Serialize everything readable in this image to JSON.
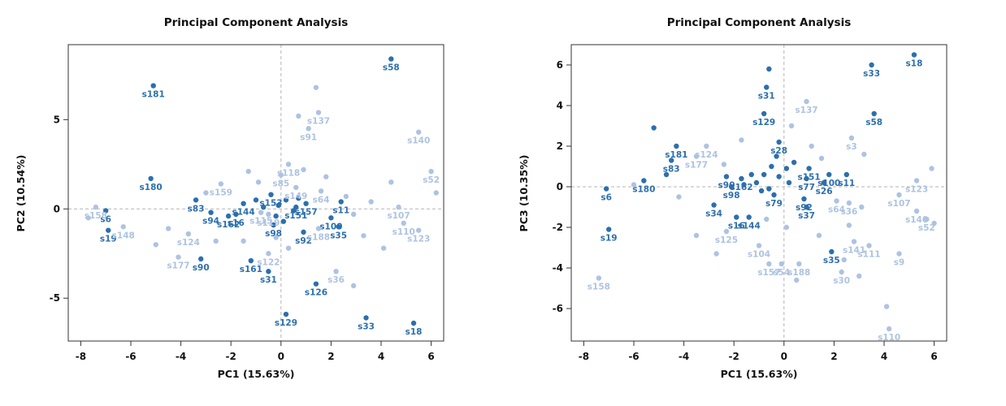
{
  "page": {
    "background": "#ffffff"
  },
  "colors": {
    "dark": "#2c6fad",
    "light": "#aec3e1"
  },
  "chart_data": [
    {
      "type": "scatter",
      "title": "Principal Component Analysis",
      "xlabel": "PC1 (15.63%)",
      "ylabel": "PC2 (10.54%)",
      "xlim": [
        -8.5,
        6.5
      ],
      "ylim": [
        -7.4,
        9.2
      ],
      "xticks": [
        -8,
        -6,
        -4,
        -2,
        0,
        2,
        4,
        6
      ],
      "yticks": [
        -5,
        0,
        5
      ],
      "grid": "zero-lines-dashed",
      "legend": "none",
      "points": [
        {
          "n": "s58",
          "x": 4.4,
          "y": 8.4,
          "c": "d"
        },
        {
          "n": "s181",
          "x": -5.1,
          "y": 6.9,
          "c": "d"
        },
        {
          "n": "s180",
          "x": -5.2,
          "y": 1.7,
          "c": "d"
        },
        {
          "n": "s83",
          "x": -3.4,
          "y": 0.5,
          "c": "d"
        },
        {
          "n": "s94",
          "x": -2.8,
          "y": -0.2,
          "c": "d"
        },
        {
          "n": "s6",
          "x": -7.0,
          "y": -0.1,
          "c": "d"
        },
        {
          "n": "s19",
          "x": -6.9,
          "y": -1.2,
          "c": "d"
        },
        {
          "n": "s90",
          "x": -3.2,
          "y": -2.8,
          "c": "d"
        },
        {
          "n": "s161",
          "x": -1.2,
          "y": -2.9,
          "c": "d"
        },
        {
          "n": "s31",
          "x": -0.5,
          "y": -3.5,
          "c": "d"
        },
        {
          "n": "s126",
          "x": 1.4,
          "y": -4.2,
          "c": "d"
        },
        {
          "n": "s129",
          "x": 0.2,
          "y": -5.9,
          "c": "d"
        },
        {
          "n": "s33",
          "x": 3.4,
          "y": -6.1,
          "c": "d"
        },
        {
          "n": "s18",
          "x": 5.3,
          "y": -6.4,
          "c": "d"
        },
        {
          "n": "s92",
          "x": 0.9,
          "y": -1.3,
          "c": "d"
        },
        {
          "n": "s35",
          "x": 2.3,
          "y": -1.0,
          "c": "d"
        },
        {
          "n": "s100",
          "x": 2.0,
          "y": -0.5,
          "c": "d"
        },
        {
          "n": "s11",
          "x": 2.4,
          "y": 0.4,
          "c": "d"
        },
        {
          "n": "s144",
          "x": -1.5,
          "y": 0.3,
          "c": "d"
        },
        {
          "n": "s162",
          "x": -2.1,
          "y": -0.4,
          "c": "d"
        },
        {
          "n": "s16",
          "x": -1.8,
          "y": -0.3,
          "c": "d"
        },
        {
          "n": "s153",
          "x": -0.4,
          "y": 0.8,
          "c": "d"
        },
        {
          "n": "s157",
          "x": 1.0,
          "y": 0.3,
          "c": "d"
        },
        {
          "n": "s151",
          "x": 0.6,
          "y": 0.1,
          "c": "d"
        },
        {
          "n": "s98",
          "x": -0.3,
          "y": -0.9,
          "c": "d"
        },
        {
          "x": -0.1,
          "y": 0.2,
          "c": "d"
        },
        {
          "x": 0.2,
          "y": 0.5,
          "c": "d"
        },
        {
          "x": -0.7,
          "y": 0.1,
          "c": "d"
        },
        {
          "x": 0.5,
          "y": -0.1,
          "c": "d"
        },
        {
          "x": -0.2,
          "y": -0.4,
          "c": "d"
        },
        {
          "x": 0.7,
          "y": 0.6,
          "c": "d"
        },
        {
          "x": -1.0,
          "y": 0.5,
          "c": "d"
        },
        {
          "x": 0.1,
          "y": -0.7,
          "c": "d"
        },
        {
          "n": "s137",
          "x": 1.5,
          "y": 5.4,
          "c": "l"
        },
        {
          "n": "s91",
          "x": 1.1,
          "y": 4.5,
          "c": "l"
        },
        {
          "n": "s140",
          "x": 5.5,
          "y": 4.3,
          "c": "l"
        },
        {
          "n": "s52",
          "x": 6.0,
          "y": 2.1,
          "c": "l"
        },
        {
          "n": "s118",
          "x": 0.3,
          "y": 2.5,
          "c": "l"
        },
        {
          "n": "s85",
          "x": 0.0,
          "y": 1.9,
          "c": "l"
        },
        {
          "n": "s159",
          "x": -2.4,
          "y": 1.4,
          "c": "l"
        },
        {
          "n": "s149",
          "x": 0.6,
          "y": 1.2,
          "c": "l"
        },
        {
          "n": "s64",
          "x": 1.6,
          "y": 1.0,
          "c": "l"
        },
        {
          "n": "s107",
          "x": 4.7,
          "y": 0.1,
          "c": "l"
        },
        {
          "n": "s110",
          "x": 4.9,
          "y": -0.8,
          "c": "l"
        },
        {
          "n": "s123",
          "x": 5.5,
          "y": -1.2,
          "c": "l"
        },
        {
          "n": "s148",
          "x": -6.3,
          "y": -1.0,
          "c": "l"
        },
        {
          "n": "s158",
          "x": -7.4,
          "y": 0.1,
          "c": "l"
        },
        {
          "n": "s124",
          "x": -3.7,
          "y": -1.4,
          "c": "l"
        },
        {
          "n": "s177",
          "x": -4.1,
          "y": -2.7,
          "c": "l"
        },
        {
          "n": "s122",
          "x": -0.5,
          "y": -2.5,
          "c": "l"
        },
        {
          "n": "s36",
          "x": 2.2,
          "y": -3.5,
          "c": "l"
        },
        {
          "n": "s188",
          "x": 1.5,
          "y": -1.1,
          "c": "l"
        },
        {
          "n": "s115",
          "x": -0.8,
          "y": -0.2,
          "c": "l"
        },
        {
          "n": "s119",
          "x": -0.5,
          "y": -0.3,
          "c": "l"
        },
        {
          "x": -7.7,
          "y": -0.5,
          "c": "l"
        },
        {
          "x": -5.0,
          "y": -2.0,
          "c": "l"
        },
        {
          "x": -4.5,
          "y": -1.1,
          "c": "l"
        },
        {
          "x": -3.0,
          "y": 0.9,
          "c": "l"
        },
        {
          "x": -2.6,
          "y": -1.8,
          "c": "l"
        },
        {
          "x": -1.5,
          "y": -1.8,
          "c": "l"
        },
        {
          "x": -0.9,
          "y": 1.5,
          "c": "l"
        },
        {
          "x": 0.9,
          "y": 2.2,
          "c": "l"
        },
        {
          "x": 1.4,
          "y": 6.8,
          "c": "l"
        },
        {
          "x": 0.7,
          "y": 5.2,
          "c": "l"
        },
        {
          "x": 2.6,
          "y": 0.7,
          "c": "l"
        },
        {
          "x": 2.9,
          "y": -0.3,
          "c": "l"
        },
        {
          "x": 3.3,
          "y": -1.5,
          "c": "l"
        },
        {
          "x": 3.6,
          "y": 0.4,
          "c": "l"
        },
        {
          "x": 4.1,
          "y": -2.2,
          "c": "l"
        },
        {
          "x": 4.4,
          "y": 1.5,
          "c": "l"
        },
        {
          "x": 6.2,
          "y": 0.9,
          "c": "l"
        },
        {
          "x": 2.9,
          "y": -4.3,
          "c": "l"
        },
        {
          "x": 0.3,
          "y": -2.2,
          "c": "l"
        },
        {
          "x": -0.2,
          "y": -1.6,
          "c": "l"
        },
        {
          "x": 1.8,
          "y": 1.8,
          "c": "l"
        },
        {
          "x": -1.3,
          "y": 2.1,
          "c": "l"
        }
      ]
    },
    {
      "type": "scatter",
      "title": "Principal Component Analysis",
      "xlabel": "PC1 (15.63%)",
      "ylabel": "PC3 (10.35%)",
      "xlim": [
        -8.5,
        6.5
      ],
      "ylim": [
        -7.6,
        7.0
      ],
      "xticks": [
        -8,
        -6,
        -4,
        -2,
        0,
        2,
        4,
        6
      ],
      "yticks": [
        -6,
        -4,
        -2,
        0,
        2,
        4,
        6
      ],
      "grid": "zero-lines-dashed",
      "legend": "none",
      "points": [
        {
          "n": "s18",
          "x": 5.2,
          "y": 6.5,
          "c": "d"
        },
        {
          "n": "s33",
          "x": 3.5,
          "y": 6.0,
          "c": "d"
        },
        {
          "n": "s31",
          "x": -0.7,
          "y": 4.9,
          "c": "d"
        },
        {
          "n": "s129",
          "x": -0.8,
          "y": 3.6,
          "c": "d"
        },
        {
          "n": "s58",
          "x": 3.6,
          "y": 3.6,
          "c": "d"
        },
        {
          "n": "s181",
          "x": -4.3,
          "y": 2.0,
          "c": "d"
        },
        {
          "n": "s83",
          "x": -4.5,
          "y": 1.3,
          "c": "d"
        },
        {
          "n": "s28",
          "x": -0.2,
          "y": 2.2,
          "c": "d"
        },
        {
          "n": "s151",
          "x": 1.0,
          "y": 0.9,
          "c": "d"
        },
        {
          "n": "s100",
          "x": 1.8,
          "y": 0.6,
          "c": "d"
        },
        {
          "n": "s11",
          "x": 2.5,
          "y": 0.6,
          "c": "d"
        },
        {
          "n": "s26",
          "x": 1.6,
          "y": 0.2,
          "c": "d"
        },
        {
          "n": "s77",
          "x": 0.9,
          "y": 0.4,
          "c": "d"
        },
        {
          "n": "s180",
          "x": -5.6,
          "y": 0.3,
          "c": "d"
        },
        {
          "n": "s6",
          "x": -7.1,
          "y": -0.1,
          "c": "d"
        },
        {
          "n": "s19",
          "x": -7.0,
          "y": -2.1,
          "c": "d"
        },
        {
          "n": "s90",
          "x": -2.3,
          "y": 0.5,
          "c": "d"
        },
        {
          "n": "s98",
          "x": -2.1,
          "y": 0.0,
          "c": "d"
        },
        {
          "n": "s162",
          "x": -1.7,
          "y": 0.4,
          "c": "d"
        },
        {
          "n": "s34",
          "x": -2.8,
          "y": -0.9,
          "c": "d"
        },
        {
          "n": "s16",
          "x": -1.9,
          "y": -1.5,
          "c": "d"
        },
        {
          "n": "s144",
          "x": -1.4,
          "y": -1.5,
          "c": "d"
        },
        {
          "n": "s92",
          "x": 0.8,
          "y": -0.6,
          "c": "d"
        },
        {
          "n": "s37",
          "x": 0.9,
          "y": -1.0,
          "c": "d"
        },
        {
          "n": "s79",
          "x": -0.4,
          "y": -0.4,
          "c": "d"
        },
        {
          "n": "s35",
          "x": 1.9,
          "y": -3.2,
          "c": "d"
        },
        {
          "x": -0.6,
          "y": 5.8,
          "c": "d"
        },
        {
          "x": -5.2,
          "y": 2.9,
          "c": "d"
        },
        {
          "x": -4.7,
          "y": 0.6,
          "c": "d"
        },
        {
          "x": -0.3,
          "y": 1.5,
          "c": "d"
        },
        {
          "x": -0.5,
          "y": 1.0,
          "c": "d"
        },
        {
          "x": -0.8,
          "y": 0.6,
          "c": "d"
        },
        {
          "x": -0.2,
          "y": 0.5,
          "c": "d"
        },
        {
          "x": 0.1,
          "y": 0.9,
          "c": "d"
        },
        {
          "x": -1.1,
          "y": 0.2,
          "c": "d"
        },
        {
          "x": -0.6,
          "y": -0.1,
          "c": "d"
        },
        {
          "x": 0.2,
          "y": 0.2,
          "c": "d"
        },
        {
          "x": -1.3,
          "y": 0.6,
          "c": "d"
        },
        {
          "x": 0.4,
          "y": 1.2,
          "c": "d"
        },
        {
          "x": -0.9,
          "y": -0.2,
          "c": "d"
        },
        {
          "x": -1.6,
          "y": 0.1,
          "c": "d"
        },
        {
          "n": "s137",
          "x": 0.9,
          "y": 4.2,
          "c": "l"
        },
        {
          "n": "s3",
          "x": 2.7,
          "y": 2.4,
          "c": "l"
        },
        {
          "n": "s124",
          "x": -3.1,
          "y": 2.0,
          "c": "l"
        },
        {
          "n": "s177",
          "x": -3.5,
          "y": 1.5,
          "c": "l"
        },
        {
          "n": "s123",
          "x": 5.3,
          "y": 0.3,
          "c": "l"
        },
        {
          "n": "s107",
          "x": 4.6,
          "y": -0.4,
          "c": "l"
        },
        {
          "n": "s140",
          "x": 5.3,
          "y": -1.2,
          "c": "l"
        },
        {
          "n": "s52",
          "x": 5.7,
          "y": -1.6,
          "c": "l"
        },
        {
          "n": "s30",
          "x": 2.3,
          "y": -4.2,
          "c": "l"
        },
        {
          "n": "s141",
          "x": 2.8,
          "y": -2.7,
          "c": "l"
        },
        {
          "n": "s111",
          "x": 3.4,
          "y": -2.9,
          "c": "l"
        },
        {
          "n": "s9",
          "x": 4.6,
          "y": -3.3,
          "c": "l"
        },
        {
          "n": "s104",
          "x": -1.0,
          "y": -2.9,
          "c": "l"
        },
        {
          "n": "s125",
          "x": -2.3,
          "y": -2.2,
          "c": "l"
        },
        {
          "n": "s157",
          "x": -0.6,
          "y": -3.8,
          "c": "l"
        },
        {
          "n": "s54",
          "x": -0.1,
          "y": -3.8,
          "c": "l"
        },
        {
          "n": "s188",
          "x": 0.6,
          "y": -3.8,
          "c": "l"
        },
        {
          "n": "s158",
          "x": -7.4,
          "y": -4.5,
          "c": "l"
        },
        {
          "n": "s110",
          "x": 4.2,
          "y": -7.0,
          "c": "l"
        },
        {
          "n": "s64",
          "x": 2.1,
          "y": -0.7,
          "c": "l"
        },
        {
          "n": "s36",
          "x": 2.6,
          "y": -0.8,
          "c": "l"
        },
        {
          "x": -6.0,
          "y": 0.1,
          "c": "l"
        },
        {
          "x": -4.2,
          "y": -0.5,
          "c": "l"
        },
        {
          "x": -3.5,
          "y": -2.4,
          "c": "l"
        },
        {
          "x": -2.7,
          "y": -3.3,
          "c": "l"
        },
        {
          "x": -1.7,
          "y": 2.3,
          "c": "l"
        },
        {
          "x": -2.4,
          "y": 1.1,
          "c": "l"
        },
        {
          "x": 0.3,
          "y": 3.0,
          "c": "l"
        },
        {
          "x": 1.1,
          "y": 2.0,
          "c": "l"
        },
        {
          "x": 1.5,
          "y": 1.4,
          "c": "l"
        },
        {
          "x": 3.2,
          "y": 1.6,
          "c": "l"
        },
        {
          "x": 5.9,
          "y": 0.9,
          "c": "l"
        },
        {
          "x": 6.0,
          "y": -1.8,
          "c": "l"
        },
        {
          "x": 3.1,
          "y": -1.0,
          "c": "l"
        },
        {
          "x": 2.6,
          "y": -1.9,
          "c": "l"
        },
        {
          "x": 1.4,
          "y": -2.4,
          "c": "l"
        },
        {
          "x": 0.1,
          "y": -2.0,
          "c": "l"
        },
        {
          "x": -0.7,
          "y": -1.6,
          "c": "l"
        },
        {
          "x": 2.4,
          "y": -3.6,
          "c": "l"
        },
        {
          "x": 4.1,
          "y": -5.9,
          "c": "l"
        },
        {
          "x": 0.5,
          "y": -4.6,
          "c": "l"
        },
        {
          "x": 3.0,
          "y": -4.4,
          "c": "l"
        }
      ]
    }
  ]
}
